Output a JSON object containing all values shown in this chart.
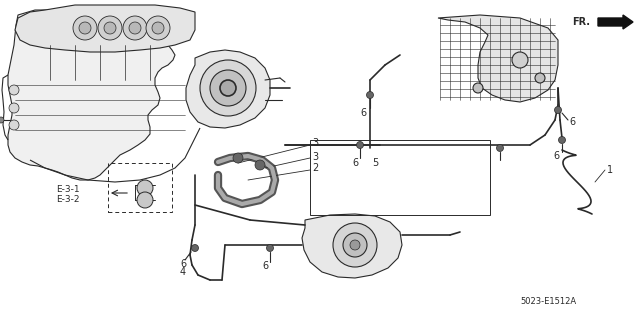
{
  "background_color": "#ffffff",
  "line_color": "#2a2a2a",
  "part_number": "5023-E1512A",
  "fr_label": "FR.",
  "figsize": [
    6.4,
    3.19
  ],
  "dpi": 100,
  "engine_color": "#444444",
  "hose_color": "#555555",
  "gray_fill": "#888888",
  "light_gray": "#cccccc"
}
